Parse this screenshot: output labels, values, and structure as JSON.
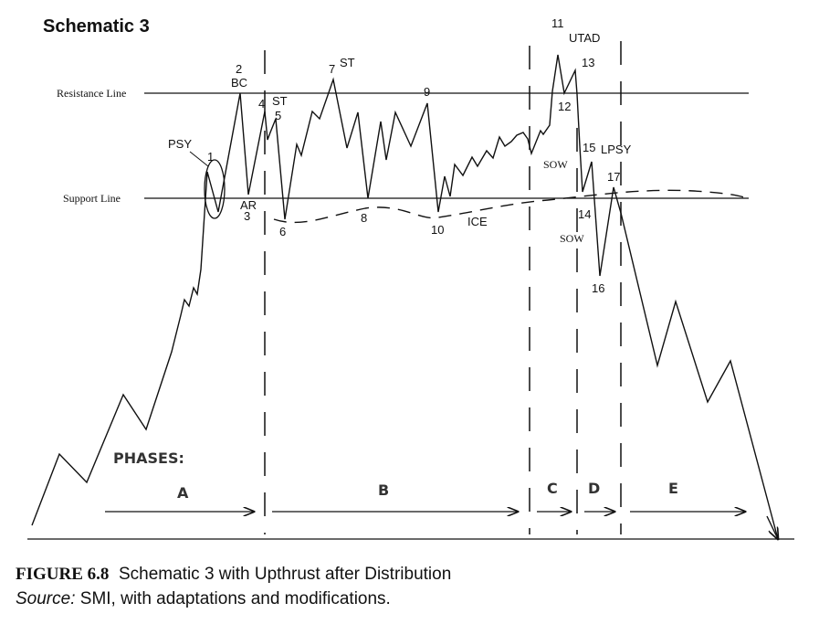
{
  "title": "Schematic 3",
  "lines": {
    "resistance": "Resistance Line",
    "support": "Support Line"
  },
  "points": {
    "psy": "PSY",
    "p1": "1",
    "p2": "2",
    "bc": "BC",
    "ar": "AR",
    "p3": "3",
    "p4": "4",
    "st1": "ST",
    "p5": "5",
    "p6": "6",
    "p7": "7",
    "st2": "ST",
    "p8": "8",
    "p9": "9",
    "p10": "10",
    "ice": "ICE",
    "p11": "11",
    "utad": "UTAD",
    "p12": "12",
    "p13": "13",
    "sow1": "SOW",
    "p14": "14",
    "sow2": "SOW",
    "p15": "15",
    "lpsy": "LPSY",
    "p16": "16",
    "p17": "17"
  },
  "phases": {
    "heading": "PHASES:",
    "a": "A",
    "b": "B",
    "c": "C",
    "d": "D",
    "e": "E"
  },
  "caption": {
    "figure": "FIGURE 6.8",
    "text": "Schematic 3 with Upthrust after Distribution",
    "source_label": "Source:",
    "source_text": "SMI, with adaptations and modifications."
  }
}
